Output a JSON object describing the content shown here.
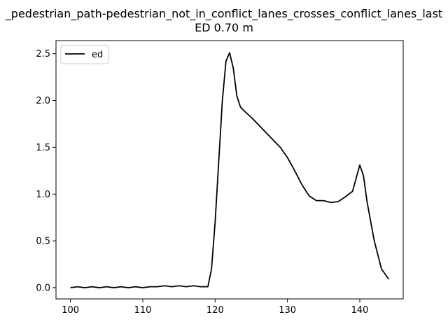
{
  "chart_data": {
    "type": "line",
    "title": "_pedestrian_path-pedestrian_not_in_conflict_lanes_crosses_conflict_lanes_last",
    "subtitle": "ED 0.70 m",
    "xlabel": "",
    "ylabel": "",
    "xlim": [
      98,
      146
    ],
    "ylim": [
      -0.12,
      2.64
    ],
    "xticks": [
      100,
      110,
      120,
      130,
      140
    ],
    "yticks": [
      0.0,
      0.5,
      1.0,
      1.5,
      2.0,
      2.5
    ],
    "xtick_labels": [
      "100",
      "110",
      "120",
      "130",
      "140"
    ],
    "ytick_labels": [
      "0.0",
      "0.5",
      "1.0",
      "1.5",
      "2.0",
      "2.5"
    ],
    "grid": false,
    "legend_position": "upper-left",
    "series": [
      {
        "name": "ed",
        "color": "#000000",
        "points": [
          [
            100.0,
            0.0
          ],
          [
            101.0,
            0.01
          ],
          [
            102.0,
            0.0
          ],
          [
            103.0,
            0.01
          ],
          [
            104.0,
            0.0
          ],
          [
            105.0,
            0.01
          ],
          [
            106.0,
            0.0
          ],
          [
            107.0,
            0.01
          ],
          [
            108.0,
            0.0
          ],
          [
            109.0,
            0.01
          ],
          [
            110.0,
            0.0
          ],
          [
            111.0,
            0.01
          ],
          [
            112.0,
            0.01
          ],
          [
            113.0,
            0.02
          ],
          [
            114.0,
            0.01
          ],
          [
            115.0,
            0.02
          ],
          [
            116.0,
            0.01
          ],
          [
            117.0,
            0.02
          ],
          [
            118.0,
            0.01
          ],
          [
            119.0,
            0.01
          ],
          [
            119.5,
            0.2
          ],
          [
            120.0,
            0.7
          ],
          [
            120.5,
            1.35
          ],
          [
            121.0,
            2.0
          ],
          [
            121.5,
            2.42
          ],
          [
            122.0,
            2.51
          ],
          [
            122.5,
            2.35
          ],
          [
            123.0,
            2.05
          ],
          [
            123.5,
            1.93
          ],
          [
            124.0,
            1.89
          ],
          [
            125.0,
            1.82
          ],
          [
            126.0,
            1.74
          ],
          [
            127.0,
            1.66
          ],
          [
            128.0,
            1.58
          ],
          [
            129.0,
            1.5
          ],
          [
            130.0,
            1.39
          ],
          [
            131.0,
            1.25
          ],
          [
            132.0,
            1.1
          ],
          [
            133.0,
            0.98
          ],
          [
            134.0,
            0.93
          ],
          [
            135.0,
            0.93
          ],
          [
            136.0,
            0.91
          ],
          [
            137.0,
            0.92
          ],
          [
            138.0,
            0.97
          ],
          [
            139.0,
            1.03
          ],
          [
            139.5,
            1.17
          ],
          [
            140.0,
            1.31
          ],
          [
            140.5,
            1.2
          ],
          [
            141.0,
            0.92
          ],
          [
            142.0,
            0.5
          ],
          [
            143.0,
            0.2
          ],
          [
            144.0,
            0.09
          ]
        ]
      }
    ]
  }
}
